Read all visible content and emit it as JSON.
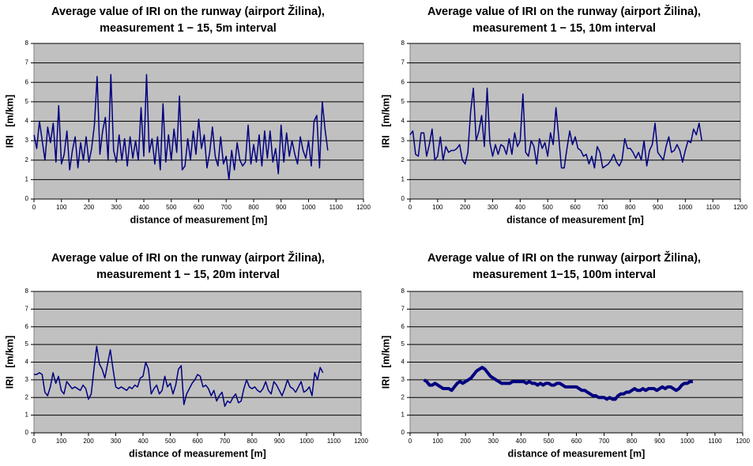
{
  "chart_data": [
    {
      "type": "line",
      "title": [
        "Average value of IRI on the runway (airport Žilina),",
        "measurement 1 − 15, 5m interval"
      ],
      "x_label": "distance of measurement [m]",
      "y_label": "IRI   [m/km]",
      "xlim": [
        0,
        1200
      ],
      "xticks": [
        0,
        100,
        200,
        300,
        400,
        500,
        600,
        700,
        800,
        900,
        1000,
        1100,
        1200
      ],
      "ylim": [
        0,
        8
      ],
      "yticks": [
        0,
        1,
        2,
        3,
        4,
        5,
        6,
        7,
        8
      ],
      "grid": true,
      "color": "#000080",
      "line_width": 1.5,
      "x": [
        0,
        10,
        20,
        30,
        40,
        50,
        60,
        70,
        80,
        90,
        100,
        110,
        120,
        130,
        140,
        150,
        160,
        170,
        180,
        190,
        200,
        210,
        220,
        230,
        240,
        250,
        260,
        270,
        280,
        290,
        300,
        310,
        320,
        330,
        340,
        350,
        360,
        370,
        380,
        390,
        400,
        410,
        420,
        430,
        440,
        450,
        460,
        470,
        480,
        490,
        500,
        510,
        520,
        530,
        540,
        550,
        560,
        570,
        580,
        590,
        600,
        610,
        620,
        630,
        640,
        650,
        660,
        670,
        680,
        690,
        700,
        710,
        720,
        730,
        740,
        750,
        760,
        770,
        780,
        790,
        800,
        810,
        820,
        830,
        840,
        850,
        860,
        870,
        880,
        890,
        900,
        910,
        920,
        930,
        940,
        950,
        960,
        970,
        980,
        990,
        1000,
        1010,
        1020,
        1030,
        1040,
        1050,
        1060,
        1070
      ],
      "values": [
        3.3,
        2.6,
        4.0,
        3.0,
        2.0,
        3.7,
        2.9,
        3.9,
        1.9,
        4.8,
        1.8,
        2.3,
        3.5,
        1.5,
        2.5,
        3.2,
        1.6,
        2.9,
        2.0,
        3.2,
        1.9,
        2.6,
        3.8,
        6.3,
        2.3,
        3.5,
        4.2,
        2.0,
        6.4,
        2.5,
        1.9,
        3.3,
        2.0,
        3.1,
        1.7,
        3.2,
        2.1,
        3.0,
        2.0,
        4.7,
        2.2,
        6.4,
        2.4,
        3.1,
        1.8,
        3.2,
        1.5,
        4.9,
        1.9,
        3.3,
        2.0,
        3.6,
        2.4,
        5.3,
        1.5,
        1.7,
        3.1,
        2.0,
        3.5,
        2.3,
        4.1,
        2.6,
        3.3,
        1.6,
        2.4,
        3.7,
        2.2,
        1.7,
        3.2,
        1.8,
        2.2,
        1.0,
        2.5,
        1.5,
        2.9,
        2.0,
        1.7,
        1.9,
        3.8,
        1.8,
        2.8,
        1.9,
        3.3,
        1.7,
        3.5,
        2.1,
        3.5,
        1.9,
        2.6,
        1.3,
        3.8,
        1.9,
        3.4,
        2.2,
        3.0,
        2.3,
        1.8,
        3.2,
        2.5,
        2.1,
        3.0,
        1.7,
        4.0,
        4.3,
        1.6,
        5.0,
        3.6,
        2.5
      ]
    },
    {
      "type": "line",
      "title": [
        "Average value of IRI on the runway (airport Žilina),",
        "measurement 1 − 15, 10m interval"
      ],
      "x_label": "distance of measurement [m]",
      "y_label": "IRI   [m/km]",
      "xlim": [
        0,
        1200
      ],
      "xticks": [
        0,
        100,
        200,
        300,
        400,
        500,
        600,
        700,
        800,
        900,
        1000,
        1100,
        1200
      ],
      "ylim": [
        0,
        8
      ],
      "yticks": [
        0,
        1,
        2,
        3,
        4,
        5,
        6,
        7,
        8
      ],
      "grid": true,
      "color": "#000080",
      "line_width": 1.5,
      "x": [
        0,
        10,
        20,
        30,
        40,
        50,
        60,
        70,
        80,
        90,
        100,
        110,
        120,
        130,
        140,
        150,
        160,
        170,
        180,
        190,
        200,
        210,
        220,
        230,
        240,
        250,
        260,
        270,
        280,
        290,
        300,
        310,
        320,
        330,
        340,
        350,
        360,
        370,
        380,
        390,
        400,
        410,
        420,
        430,
        440,
        450,
        460,
        470,
        480,
        490,
        500,
        510,
        520,
        530,
        540,
        550,
        560,
        570,
        580,
        590,
        600,
        610,
        620,
        630,
        640,
        650,
        660,
        670,
        680,
        690,
        700,
        710,
        720,
        730,
        740,
        750,
        760,
        770,
        780,
        790,
        800,
        810,
        820,
        830,
        840,
        850,
        860,
        870,
        880,
        890,
        900,
        910,
        920,
        930,
        940,
        950,
        960,
        970,
        980,
        990,
        1000,
        1010,
        1020,
        1030,
        1040,
        1050,
        1060
      ],
      "values": [
        3.3,
        3.5,
        2.3,
        2.2,
        3.4,
        3.4,
        2.2,
        2.8,
        3.6,
        2.0,
        2.2,
        3.2,
        2.0,
        2.7,
        2.4,
        2.5,
        2.5,
        2.6,
        2.8,
        2.0,
        1.8,
        2.4,
        4.5,
        5.7,
        3.0,
        3.5,
        4.3,
        2.7,
        5.7,
        2.9,
        2.2,
        2.8,
        2.3,
        2.8,
        2.7,
        2.3,
        3.1,
        2.3,
        3.4,
        2.7,
        3.0,
        5.4,
        2.4,
        2.2,
        3.0,
        2.7,
        1.8,
        3.1,
        2.6,
        2.9,
        2.2,
        3.4,
        2.8,
        4.7,
        3.2,
        1.6,
        1.6,
        2.6,
        3.5,
        2.8,
        3.2,
        2.6,
        2.5,
        2.2,
        2.3,
        1.8,
        2.2,
        1.6,
        2.7,
        2.4,
        1.6,
        1.7,
        1.8,
        2.0,
        2.3,
        1.9,
        1.7,
        2.0,
        3.1,
        2.6,
        2.6,
        2.4,
        2.1,
        2.4,
        2.0,
        3.0,
        1.7,
        2.5,
        2.8,
        3.9,
        2.4,
        2.2,
        2.0,
        2.7,
        3.2,
        2.4,
        2.5,
        2.8,
        2.5,
        1.9,
        2.5,
        3.0,
        2.9,
        3.6,
        3.3,
        3.9,
        3.0
      ]
    },
    {
      "type": "line",
      "title": [
        "Average value of IRI on the runway (airport Žilina),",
        "measurement 1 − 15, 20m interval"
      ],
      "x_label": "distance of measurement [m]",
      "y_label": "IRI   [m/km]",
      "xlim": [
        0,
        1200
      ],
      "xticks": [
        0,
        100,
        200,
        300,
        400,
        500,
        600,
        700,
        800,
        900,
        1000,
        1100,
        1200
      ],
      "ylim": [
        0,
        8
      ],
      "yticks": [
        0,
        1,
        2,
        3,
        4,
        5,
        6,
        7,
        8
      ],
      "grid": true,
      "color": "#000080",
      "line_width": 1.5,
      "x": [
        0,
        10,
        20,
        30,
        40,
        50,
        60,
        70,
        80,
        90,
        100,
        110,
        120,
        130,
        140,
        150,
        160,
        170,
        180,
        190,
        200,
        210,
        220,
        230,
        240,
        250,
        260,
        270,
        280,
        290,
        300,
        310,
        320,
        330,
        340,
        350,
        360,
        370,
        380,
        390,
        400,
        410,
        420,
        430,
        440,
        450,
        460,
        470,
        480,
        490,
        500,
        510,
        520,
        530,
        540,
        550,
        560,
        570,
        580,
        590,
        600,
        610,
        620,
        630,
        640,
        650,
        660,
        670,
        680,
        690,
        700,
        710,
        720,
        730,
        740,
        750,
        760,
        770,
        780,
        790,
        800,
        810,
        820,
        830,
        840,
        850,
        860,
        870,
        880,
        890,
        900,
        910,
        920,
        930,
        940,
        950,
        960,
        970,
        980,
        990,
        1000,
        1010,
        1020,
        1030,
        1040,
        1050,
        1060
      ],
      "values": [
        3.3,
        3.3,
        3.4,
        3.3,
        2.3,
        2.1,
        2.6,
        3.4,
        2.8,
        3.2,
        2.4,
        2.2,
        2.9,
        2.7,
        2.5,
        2.6,
        2.5,
        2.4,
        2.7,
        2.5,
        1.9,
        2.2,
        3.6,
        4.9,
        3.9,
        3.6,
        3.1,
        3.9,
        4.7,
        3.6,
        2.6,
        2.5,
        2.6,
        2.5,
        2.4,
        2.6,
        2.5,
        2.7,
        2.6,
        3.1,
        3.2,
        4.0,
        3.6,
        2.2,
        2.5,
        2.7,
        2.2,
        2.4,
        3.2,
        2.6,
        2.8,
        2.2,
        2.7,
        3.6,
        3.8,
        1.6,
        2.2,
        2.5,
        2.8,
        3.0,
        3.3,
        3.2,
        2.6,
        2.7,
        2.5,
        2.1,
        2.4,
        1.8,
        2.1,
        2.3,
        1.5,
        1.8,
        1.7,
        2.0,
        2.2,
        1.7,
        1.8,
        2.5,
        3.0,
        2.6,
        2.5,
        2.6,
        2.4,
        2.3,
        2.5,
        2.9,
        2.4,
        2.2,
        2.9,
        2.7,
        2.4,
        2.1,
        2.5,
        3.0,
        2.6,
        2.5,
        2.3,
        2.6,
        2.9,
        2.3,
        2.4,
        2.6,
        2.1,
        3.4,
        3.0,
        3.7,
        3.4
      ]
    },
    {
      "type": "line",
      "title": [
        "Average value of IRI on the runway (airport Žilina),",
        "measurement 1−15, 100m interval"
      ],
      "x_label": "distance of measurement [m]",
      "y_label": "IRI   [m/km]",
      "xlim": [
        0,
        1200
      ],
      "xticks": [
        0,
        100,
        200,
        300,
        400,
        500,
        600,
        700,
        800,
        900,
        1000,
        1100,
        1200
      ],
      "ylim": [
        0,
        8
      ],
      "yticks": [
        0,
        1,
        2,
        3,
        4,
        5,
        6,
        7,
        8
      ],
      "grid": true,
      "color": "#000080",
      "line_width": 4,
      "x": [
        50,
        60,
        70,
        80,
        90,
        100,
        110,
        120,
        130,
        140,
        150,
        160,
        170,
        180,
        190,
        200,
        210,
        220,
        230,
        240,
        250,
        260,
        270,
        280,
        290,
        300,
        310,
        320,
        330,
        340,
        350,
        360,
        370,
        380,
        390,
        400,
        410,
        420,
        430,
        440,
        450,
        460,
        470,
        480,
        490,
        500,
        510,
        520,
        530,
        540,
        550,
        560,
        570,
        580,
        590,
        600,
        610,
        620,
        630,
        640,
        650,
        660,
        670,
        680,
        690,
        700,
        710,
        720,
        730,
        740,
        750,
        760,
        770,
        780,
        790,
        800,
        810,
        820,
        830,
        840,
        850,
        860,
        870,
        880,
        890,
        900,
        910,
        920,
        930,
        940,
        950,
        960,
        970,
        980,
        990,
        1000,
        1010,
        1020
      ],
      "values": [
        3.0,
        2.9,
        2.7,
        2.7,
        2.8,
        2.7,
        2.6,
        2.5,
        2.5,
        2.5,
        2.4,
        2.6,
        2.8,
        2.9,
        2.8,
        2.9,
        3.0,
        3.1,
        3.3,
        3.5,
        3.6,
        3.7,
        3.6,
        3.4,
        3.2,
        3.1,
        3.0,
        2.9,
        2.8,
        2.8,
        2.8,
        2.8,
        2.9,
        2.9,
        2.9,
        2.9,
        2.9,
        2.8,
        2.9,
        2.8,
        2.8,
        2.7,
        2.8,
        2.7,
        2.8,
        2.8,
        2.7,
        2.7,
        2.8,
        2.8,
        2.7,
        2.6,
        2.6,
        2.6,
        2.6,
        2.6,
        2.5,
        2.4,
        2.4,
        2.3,
        2.2,
        2.1,
        2.1,
        2.0,
        2.0,
        2.0,
        1.9,
        2.0,
        1.9,
        1.9,
        2.1,
        2.2,
        2.2,
        2.3,
        2.3,
        2.4,
        2.5,
        2.4,
        2.4,
        2.5,
        2.4,
        2.5,
        2.5,
        2.5,
        2.4,
        2.5,
        2.6,
        2.5,
        2.6,
        2.6,
        2.5,
        2.4,
        2.5,
        2.7,
        2.8,
        2.8,
        2.9,
        2.9
      ]
    }
  ]
}
